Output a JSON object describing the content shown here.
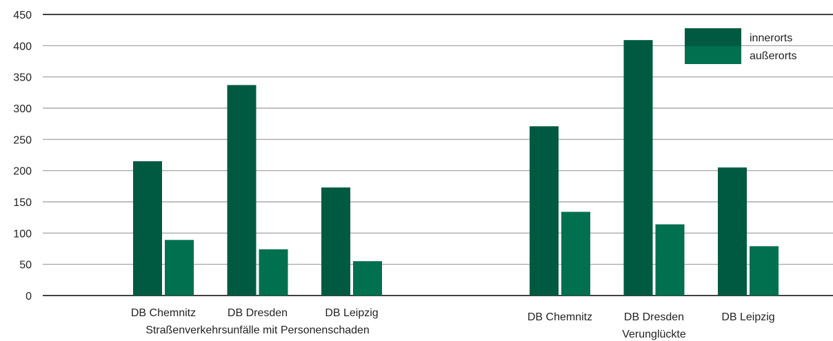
{
  "chart_data": {
    "type": "bar",
    "title": "",
    "xlabel": "",
    "ylabel": "",
    "ylim": [
      0,
      450
    ],
    "yticks": [
      0,
      50,
      100,
      150,
      200,
      250,
      300,
      350,
      400,
      450
    ],
    "grid": true,
    "legend_position": "top-right",
    "colors": {
      "innerorts": "#005a41",
      "außerorts": "#00704f",
      "grid": "#999999",
      "axis": "#000000"
    },
    "series_names": [
      "innerorts",
      "außerorts"
    ],
    "groups": [
      {
        "label": "Straßenverkehrsunfälle mit Personenschaden",
        "categories": [
          "DB Chemnitz",
          "DB Dresden",
          "DB Leipzig"
        ],
        "innerorts": [
          215,
          337,
          173
        ],
        "außerorts": [
          89,
          74,
          55
        ]
      },
      {
        "label": "Verunglückte",
        "categories": [
          "DB Chemnitz",
          "DB Dresden",
          "DB Leipzig"
        ],
        "innerorts": [
          271,
          409,
          205
        ],
        "außerorts": [
          134,
          114,
          79
        ]
      }
    ]
  }
}
